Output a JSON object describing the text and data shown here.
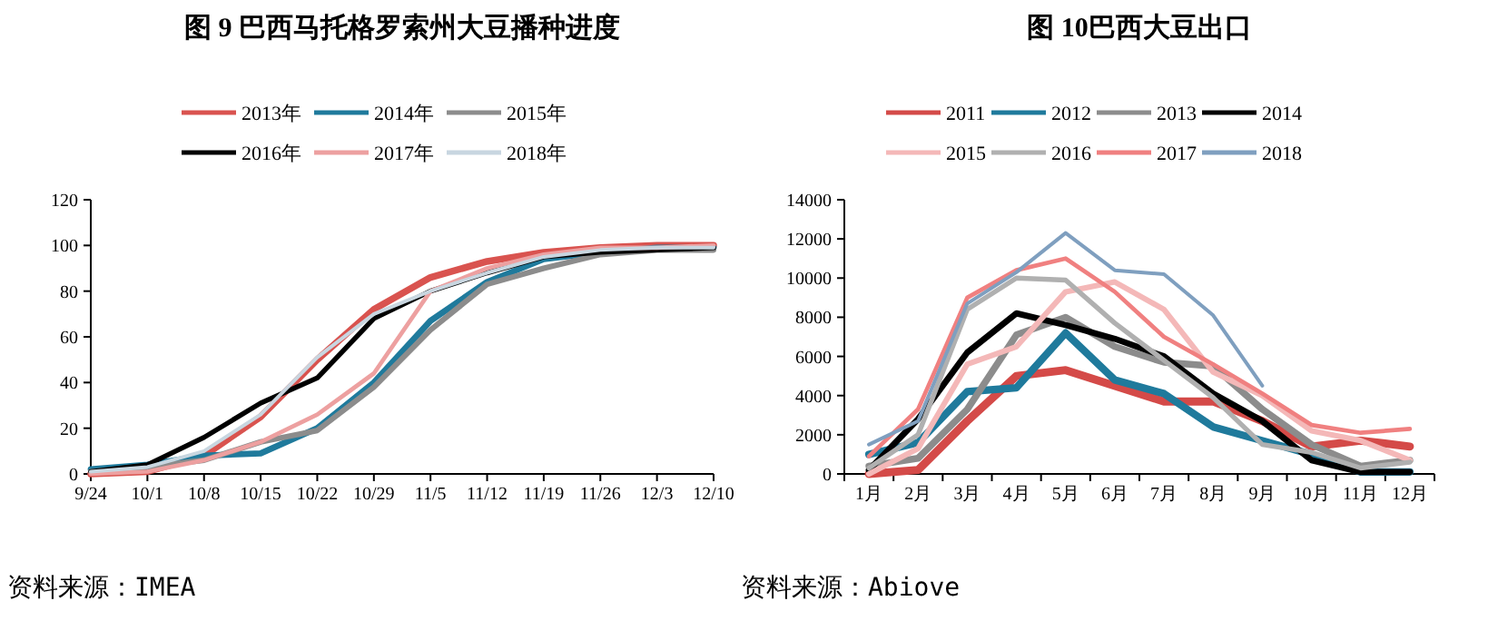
{
  "chart_data": [
    {
      "type": "line",
      "title": "图 9  巴西马托格罗索州大豆播种进度",
      "categories": [
        "9/24",
        "10/1",
        "10/8",
        "10/15",
        "10/22",
        "10/29",
        "11/5",
        "11/12",
        "11/19",
        "11/26",
        "12/3",
        "12/10"
      ],
      "ylim": [
        0,
        120
      ],
      "yticks": [
        0,
        20,
        40,
        60,
        80,
        100,
        120
      ],
      "grid": false,
      "legend": "top",
      "marker": "none",
      "annotations": [
        "资料来源：IMEA"
      ],
      "series": [
        {
          "name": "2013年",
          "color": "#d9534f",
          "values": [
            0,
            1,
            8,
            25,
            50,
            72,
            86,
            93,
            97,
            99,
            100,
            100
          ]
        },
        {
          "name": "2014年",
          "color": "#1f7a9c",
          "values": [
            2,
            4,
            8,
            9,
            20,
            40,
            67,
            84,
            94,
            97,
            99,
            99
          ]
        },
        {
          "name": "2015年",
          "color": "#8c8c8c",
          "values": [
            1,
            3,
            6,
            14,
            19,
            38,
            63,
            83,
            90,
            96,
            98,
            98
          ]
        },
        {
          "name": "2016年",
          "color": "#000000",
          "values": [
            1,
            4,
            16,
            31,
            42,
            68,
            80,
            88,
            95,
            97,
            98,
            99
          ]
        },
        {
          "name": "2017年",
          "color": "#eda0a0",
          "values": [
            0,
            1,
            6,
            14,
            26,
            44,
            80,
            90,
            96,
            99,
            99,
            100
          ]
        },
        {
          "name": "2018年",
          "color": "#c8d6e0",
          "values": [
            1,
            3,
            10,
            26,
            51,
            70,
            80,
            88,
            95,
            98,
            99,
            99
          ]
        }
      ]
    },
    {
      "type": "line",
      "title": "图 10巴西大豆出口",
      "categories": [
        "1月",
        "2月",
        "3月",
        "4月",
        "5月",
        "6月",
        "7月",
        "8月",
        "9月",
        "10月",
        "11月",
        "12月"
      ],
      "ylim": [
        0,
        14000
      ],
      "yticks": [
        0,
        2000,
        4000,
        6000,
        8000,
        10000,
        12000,
        14000
      ],
      "grid": false,
      "legend": "top",
      "marker": "none",
      "annotations": [
        "资料来源：Abiove"
      ],
      "series": [
        {
          "name": "2011",
          "color": "#d44a48",
          "values": [
            0,
            200,
            2700,
            5000,
            5300,
            4500,
            3700,
            3700,
            2700,
            1400,
            1700,
            1400
          ]
        },
        {
          "name": "2012",
          "color": "#1f7a9c",
          "values": [
            1000,
            1600,
            4200,
            4400,
            7200,
            4800,
            4100,
            2400,
            1700,
            1000,
            100,
            100
          ]
        },
        {
          "name": "2013",
          "color": "#8c8c8c",
          "values": [
            400,
            800,
            3300,
            7100,
            8000,
            6500,
            5700,
            5500,
            3300,
            1500,
            400,
            700
          ]
        },
        {
          "name": "2014",
          "color": "#000000",
          "values": [
            200,
            2800,
            6200,
            8200,
            7600,
            6900,
            6000,
            4100,
            2700,
            700,
            100,
            100
          ]
        },
        {
          "name": "2015",
          "color": "#f4b8b8",
          "values": [
            0,
            1300,
            5600,
            6500,
            9300,
            9800,
            8400,
            5200,
            4000,
            2200,
            1700,
            700
          ]
        },
        {
          "name": "2016",
          "color": "#b0b0b0",
          "values": [
            300,
            2000,
            8400,
            10000,
            9900,
            7700,
            5800,
            3900,
            1500,
            1100,
            300,
            600
          ]
        },
        {
          "name": "2017",
          "color": "#f08080",
          "values": [
            900,
            3300,
            9000,
            10400,
            11000,
            9300,
            7000,
            5600,
            4100,
            2500,
            2100,
            2300
          ]
        },
        {
          "name": "2018",
          "color": "#7f9fbf",
          "values": [
            1500,
            2700,
            8700,
            10300,
            12300,
            10400,
            10200,
            8100,
            4500,
            null,
            null,
            null
          ]
        }
      ]
    }
  ]
}
